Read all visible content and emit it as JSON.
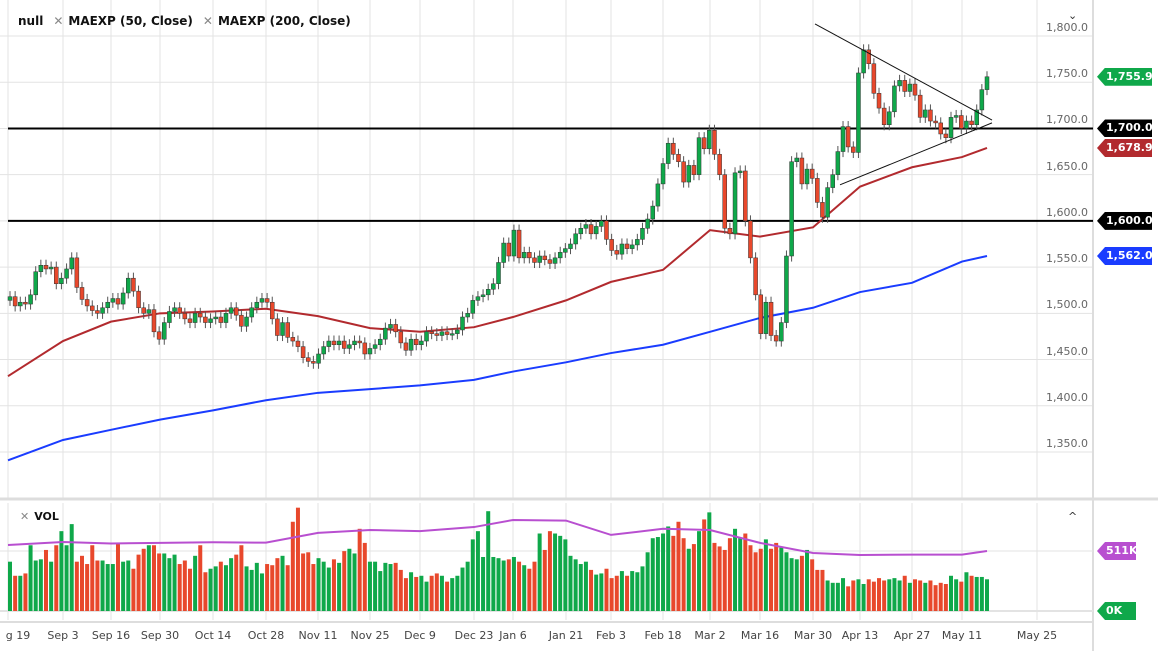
{
  "legend": {
    "main_series": "null",
    "ma50_label": "MAEXP (50, Close)",
    "ma200_label": "MAEXP (200, Close)",
    "volume_label": "VOL",
    "close_icon": "x-icon",
    "collapse_main_icon": "chevron-down-icon",
    "collapse_volume_icon": "chevron-up-icon"
  },
  "colors": {
    "up": "#0fa84a",
    "down": "#e8482c",
    "ma50": "#b22a2e",
    "ma200": "#1a3cff",
    "vol_ma": "#b84fd0",
    "level": "#000000"
  },
  "price_tags": [
    {
      "label": "1,755.9",
      "color": "#0fa84a",
      "value": 1755.9
    },
    {
      "label": "1,700.0",
      "color": "#000000",
      "value": 1700
    },
    {
      "label": "1,678.9",
      "color": "#b22a2e",
      "value": 1678.9
    },
    {
      "label": "1,600.0",
      "color": "#000000",
      "value": 1600
    },
    {
      "label": "1,562.0",
      "color": "#1a3cff",
      "value": 1562
    }
  ],
  "volume_tags": [
    {
      "label": "511K",
      "color": "#b84fd0",
      "value": 511
    },
    {
      "label": "0K",
      "color": "#0fa84a",
      "value": 0
    }
  ],
  "chart_data": {
    "type": "candlestick",
    "ylim": [
      1320,
      1820
    ],
    "y_ticks": [
      "1,800.0",
      "1,750.0",
      "1,700.0",
      "1,650.0",
      "1,600.0",
      "1,550.0",
      "1,500.0",
      "1,450.0",
      "1,400.0",
      "1,350.0"
    ],
    "y_tick_values": [
      1800,
      1750,
      1700,
      1650,
      1600,
      1550,
      1500,
      1450,
      1400,
      1350
    ],
    "x_ticks": [
      "g 19",
      "Sep 3",
      "Sep 16",
      "Sep 30",
      "Oct 14",
      "Oct 28",
      "Nov 11",
      "Nov 25",
      "Dec 9",
      "Dec 23",
      "Jan 6",
      "Jan 21",
      "Feb 3",
      "Feb 18",
      "Mar 2",
      "Mar 16",
      "Mar 30",
      "Apr 13",
      "Apr 27",
      "May 11",
      "May 25"
    ],
    "grid": true,
    "horizontal_levels": [
      1700,
      1600
    ],
    "close": [
      1518,
      1508,
      1512,
      1510,
      1520,
      1545,
      1552,
      1548,
      1550,
      1532,
      1538,
      1548,
      1560,
      1528,
      1515,
      1508,
      1503,
      1500,
      1506,
      1512,
      1516,
      1510,
      1522,
      1538,
      1524,
      1506,
      1500,
      1504,
      1480,
      1472,
      1490,
      1502,
      1506,
      1500,
      1494,
      1490,
      1500,
      1496,
      1490,
      1494,
      1496,
      1490,
      1500,
      1506,
      1498,
      1486,
      1496,
      1506,
      1512,
      1516,
      1512,
      1494,
      1476,
      1490,
      1474,
      1470,
      1464,
      1452,
      1448,
      1446,
      1456,
      1464,
      1470,
      1466,
      1470,
      1462,
      1466,
      1470,
      1468,
      1456,
      1462,
      1466,
      1472,
      1484,
      1488,
      1480,
      1468,
      1460,
      1472,
      1466,
      1470,
      1480,
      1478,
      1476,
      1480,
      1477,
      1478,
      1482,
      1496,
      1500,
      1514,
      1518,
      1520,
      1526,
      1532,
      1555,
      1576,
      1562,
      1590,
      1560,
      1566,
      1560,
      1555,
      1562,
      1558,
      1554,
      1560,
      1566,
      1570,
      1575,
      1586,
      1592,
      1596,
      1586,
      1594,
      1600,
      1580,
      1568,
      1564,
      1575,
      1570,
      1574,
      1580,
      1592,
      1602,
      1616,
      1640,
      1662,
      1684,
      1672,
      1664,
      1642,
      1660,
      1650,
      1690,
      1678,
      1698,
      1672,
      1650,
      1592,
      1586,
      1652,
      1654,
      1600,
      1560,
      1520,
      1478,
      1512,
      1476,
      1470,
      1490,
      1562,
      1664,
      1668,
      1640,
      1656,
      1646,
      1620,
      1604,
      1636,
      1650,
      1675,
      1702,
      1680,
      1674,
      1760,
      1785,
      1770,
      1738,
      1722,
      1704,
      1718,
      1746,
      1752,
      1740,
      1748,
      1736,
      1712,
      1720,
      1708,
      1706,
      1694,
      1690,
      1712,
      1714,
      1700,
      1708,
      1704,
      1720,
      1742,
      1755.9
    ],
    "ma50": {
      "name": "MAEXP (50, Close)",
      "at_ticks": [
        1432,
        1470,
        1491,
        1500,
        1502,
        1505,
        1497,
        1484,
        1480,
        1485,
        1496,
        1514,
        1534,
        1547,
        1590,
        1583,
        1593,
        1637,
        1658,
        1669
      ],
      "last": 1678.9
    },
    "ma200": {
      "name": "MAEXP (200, Close)",
      "at_ticks": [
        1341,
        1363,
        1374,
        1385,
        1395,
        1406,
        1414,
        1418,
        1422,
        1428,
        1437,
        1447,
        1457,
        1466,
        1480,
        1495,
        1506,
        1523,
        1533,
        1556
      ],
      "last": 1562.0
    },
    "trendlines": [
      {
        "from_price": 1813,
        "to_price": 1709
      },
      {
        "from_price": 1639,
        "to_price": 1706
      }
    ],
    "volume": {
      "unit": "K",
      "ylim": [
        0,
        900
      ],
      "values": [
        420,
        300,
        300,
        320,
        560,
        430,
        440,
        520,
        420,
        560,
        680,
        560,
        740,
        420,
        470,
        400,
        560,
        430,
        430,
        400,
        400,
        580,
        420,
        430,
        360,
        480,
        530,
        560,
        560,
        490,
        490,
        450,
        480,
        400,
        430,
        360,
        470,
        560,
        330,
        360,
        380,
        420,
        390,
        450,
        480,
        560,
        380,
        350,
        410,
        320,
        400,
        390,
        450,
        470,
        390,
        760,
        880,
        490,
        500,
        400,
        450,
        420,
        370,
        440,
        410,
        510,
        530,
        490,
        700,
        580,
        420,
        420,
        340,
        410,
        400,
        410,
        350,
        280,
        330,
        290,
        300,
        250,
        300,
        320,
        300,
        250,
        280,
        300,
        370,
        420,
        610,
        680,
        460,
        850,
        460,
        450,
        430,
        440,
        460,
        420,
        390,
        360,
        420,
        660,
        520,
        680,
        660,
        640,
        610,
        470,
        440,
        400,
        420,
        350,
        310,
        320,
        360,
        280,
        300,
        340,
        300,
        340,
        330,
        380,
        500,
        620,
        630,
        660,
        720,
        640,
        760,
        620,
        530,
        570,
        680,
        780,
        840,
        580,
        550,
        520,
        620,
        700,
        620,
        660,
        560,
        500,
        530,
        610,
        530,
        580,
        540,
        500,
        450,
        440,
        470,
        520,
        440,
        350,
        350,
        260,
        240,
        240,
        280,
        210,
        260,
        270,
        230,
        270,
        250,
        280,
        260,
        270,
        280,
        260,
        300,
        240,
        270,
        260,
        240,
        260,
        220,
        240,
        230,
        300,
        270,
        250,
        330,
        300,
        290,
        290,
        270
      ],
      "average_at_ticks": [
        562,
        588,
        575,
        580,
        585,
        582,
        665,
        690,
        680,
        715,
        775,
        770,
        648,
        700,
        690,
        580,
        494,
        477,
        480,
        480
      ],
      "average_last": 511
    }
  }
}
